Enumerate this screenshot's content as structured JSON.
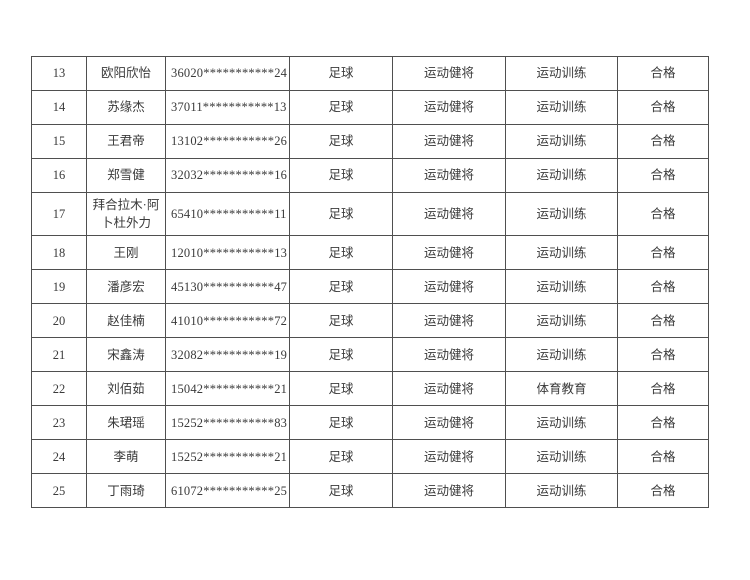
{
  "table": {
    "rows": [
      [
        "13",
        "欧阳欣怡",
        "36020***********24",
        "足球",
        "运动健将",
        "运动训练",
        "合格"
      ],
      [
        "14",
        "苏缘杰",
        "37011***********13",
        "足球",
        "运动健将",
        "运动训练",
        "合格"
      ],
      [
        "15",
        "王君帝",
        "13102***********26",
        "足球",
        "运动健将",
        "运动训练",
        "合格"
      ],
      [
        "16",
        "郑雪健",
        "32032***********16",
        "足球",
        "运动健将",
        "运动训练",
        "合格"
      ],
      [
        "17",
        "拜合拉木·阿卜杜外力",
        "65410***********11",
        "足球",
        "运动健将",
        "运动训练",
        "合格"
      ],
      [
        "18",
        "王刚",
        "12010***********13",
        "足球",
        "运动健将",
        "运动训练",
        "合格"
      ],
      [
        "19",
        "潘彦宏",
        "45130***********47",
        "足球",
        "运动健将",
        "运动训练",
        "合格"
      ],
      [
        "20",
        "赵佳楠",
        "41010***********72",
        "足球",
        "运动健将",
        "运动训练",
        "合格"
      ],
      [
        "21",
        "宋鑫涛",
        "32082***********19",
        "足球",
        "运动健将",
        "运动训练",
        "合格"
      ],
      [
        "22",
        "刘佰茹",
        "15042***********21",
        "足球",
        "运动健将",
        "体育教育",
        "合格"
      ],
      [
        "23",
        "朱珺瑶",
        "15252***********83",
        "足球",
        "运动健将",
        "运动训练",
        "合格"
      ],
      [
        "24",
        "李萌",
        "15252***********21",
        "足球",
        "运动健将",
        "运动训练",
        "合格"
      ],
      [
        "25",
        "丁雨琦",
        "61072***********25",
        "足球",
        "运动健将",
        "运动训练",
        "合格"
      ]
    ]
  }
}
